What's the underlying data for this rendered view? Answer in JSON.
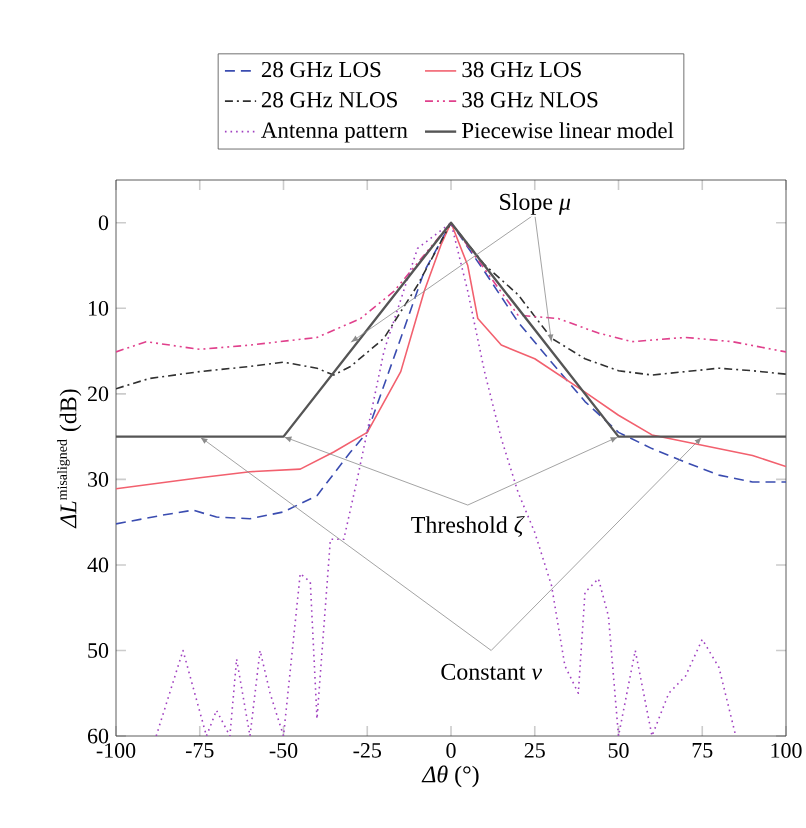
{
  "chart_data": {
    "type": "line",
    "xlabel": "*Δθ* (°)",
    "ylabel": "\\mbox{\\itshape ΔL}^{\\mbox{\\scriptsize misaligned}}\\ \\mbox{(dB)}",
    "xlim": [
      -100,
      100
    ],
    "ylim": [
      60,
      -5
    ],
    "xticks": [
      -100,
      -75,
      -50,
      -25,
      0,
      25,
      50,
      75,
      100
    ],
    "yticks": [
      0,
      10,
      20,
      30,
      40,
      50,
      60
    ],
    "legend": "top",
    "grid": false,
    "series": [
      {
        "name": "28 GHz LOS",
        "color": "#3a4cb0",
        "line_style": "dashed",
        "x": [
          -100,
          -85,
          -77,
          -70,
          -60,
          -50,
          -40,
          -30,
          -25,
          -15,
          -8,
          0,
          10,
          20,
          30,
          40,
          50,
          60,
          70,
          80,
          90,
          100
        ],
        "values": [
          35.2,
          34.1,
          33.6,
          34.4,
          34.6,
          33.8,
          31.9,
          26.8,
          24.5,
          13.5,
          5.7,
          0,
          5.7,
          11.6,
          16.3,
          20.9,
          24.5,
          26.4,
          28,
          29.5,
          30.3,
          30.3
        ]
      },
      {
        "name": "38 GHz LOS",
        "color": "#f2606e",
        "line_style": "solid",
        "x": [
          -100,
          -75,
          -60,
          -45,
          -35,
          -25,
          -15,
          -8,
          -3,
          0,
          5,
          8,
          15,
          25,
          40,
          50,
          60,
          75,
          90,
          100
        ],
        "values": [
          31.1,
          29.8,
          29.1,
          28.8,
          26.8,
          24.5,
          17.4,
          8,
          2.6,
          0,
          5,
          11.2,
          14.3,
          15.9,
          19.8,
          22.5,
          24.8,
          26,
          27.2,
          28.5
        ]
      },
      {
        "name": "28 GHz NLOS",
        "color": "#303030",
        "line_style": "dashdot",
        "x": [
          -100,
          -90,
          -75,
          -60,
          -50,
          -40,
          -35,
          -30,
          -20,
          -10,
          0,
          10,
          20,
          30,
          40,
          50,
          60,
          70,
          80,
          90,
          100
        ],
        "values": [
          19.4,
          18.2,
          17.4,
          16.8,
          16.3,
          17,
          17.8,
          16.8,
          13.5,
          7.3,
          0,
          4.9,
          8.4,
          13.5,
          15.9,
          17.3,
          17.8,
          17.4,
          17,
          17.3,
          17.7
        ]
      },
      {
        "name": "38 GHz NLOS",
        "color": "#e0408c",
        "line_style": "dashdotdot",
        "x": [
          -100,
          -91,
          -75,
          -60,
          -40,
          -27,
          -17,
          0,
          20,
          32,
          44,
          54,
          70,
          84,
          100
        ],
        "values": [
          15.1,
          13.9,
          14.8,
          14.3,
          13.4,
          11.2,
          8,
          0,
          10.8,
          11.2,
          12.9,
          13.9,
          13.4,
          13.9,
          15.1
        ]
      },
      {
        "name": "Antenna pattern",
        "color": "#a040c0",
        "line_style": "dotted",
        "x": [
          -88,
          -80,
          -73,
          -70,
          -66,
          -64,
          -60,
          -57,
          -54,
          -50,
          -45,
          -42,
          -40,
          -36,
          -32,
          -28,
          -20,
          -10,
          0,
          5,
          10,
          15,
          20,
          25,
          30,
          34,
          38,
          40,
          44,
          47,
          50,
          55,
          60,
          65,
          70,
          75,
          80,
          85
        ],
        "values": [
          60,
          50,
          60,
          57,
          60,
          51,
          60,
          50,
          55,
          60,
          41,
          42,
          58,
          37,
          37,
          30,
          15,
          3,
          0,
          8,
          17.4,
          25.2,
          31.5,
          36.2,
          42.4,
          51.8,
          55,
          43.2,
          41.6,
          46,
          60,
          50,
          60,
          55,
          53,
          48.7,
          52,
          60
        ]
      },
      {
        "name": "Piecewise linear model",
        "color": "#555555",
        "line_style": "solid",
        "x": [
          -100,
          -50,
          0,
          50,
          100
        ],
        "values": [
          25,
          25,
          0,
          25,
          25
        ]
      }
    ],
    "annotations": [
      {
        "text": "Slope *μ*",
        "x": 30,
        "y": 14
      },
      {
        "text": "Threshold *ζ*",
        "x": 50,
        "y": 25
      },
      {
        "text": "Constant *ν*",
        "x": 75,
        "y": 25
      }
    ]
  }
}
